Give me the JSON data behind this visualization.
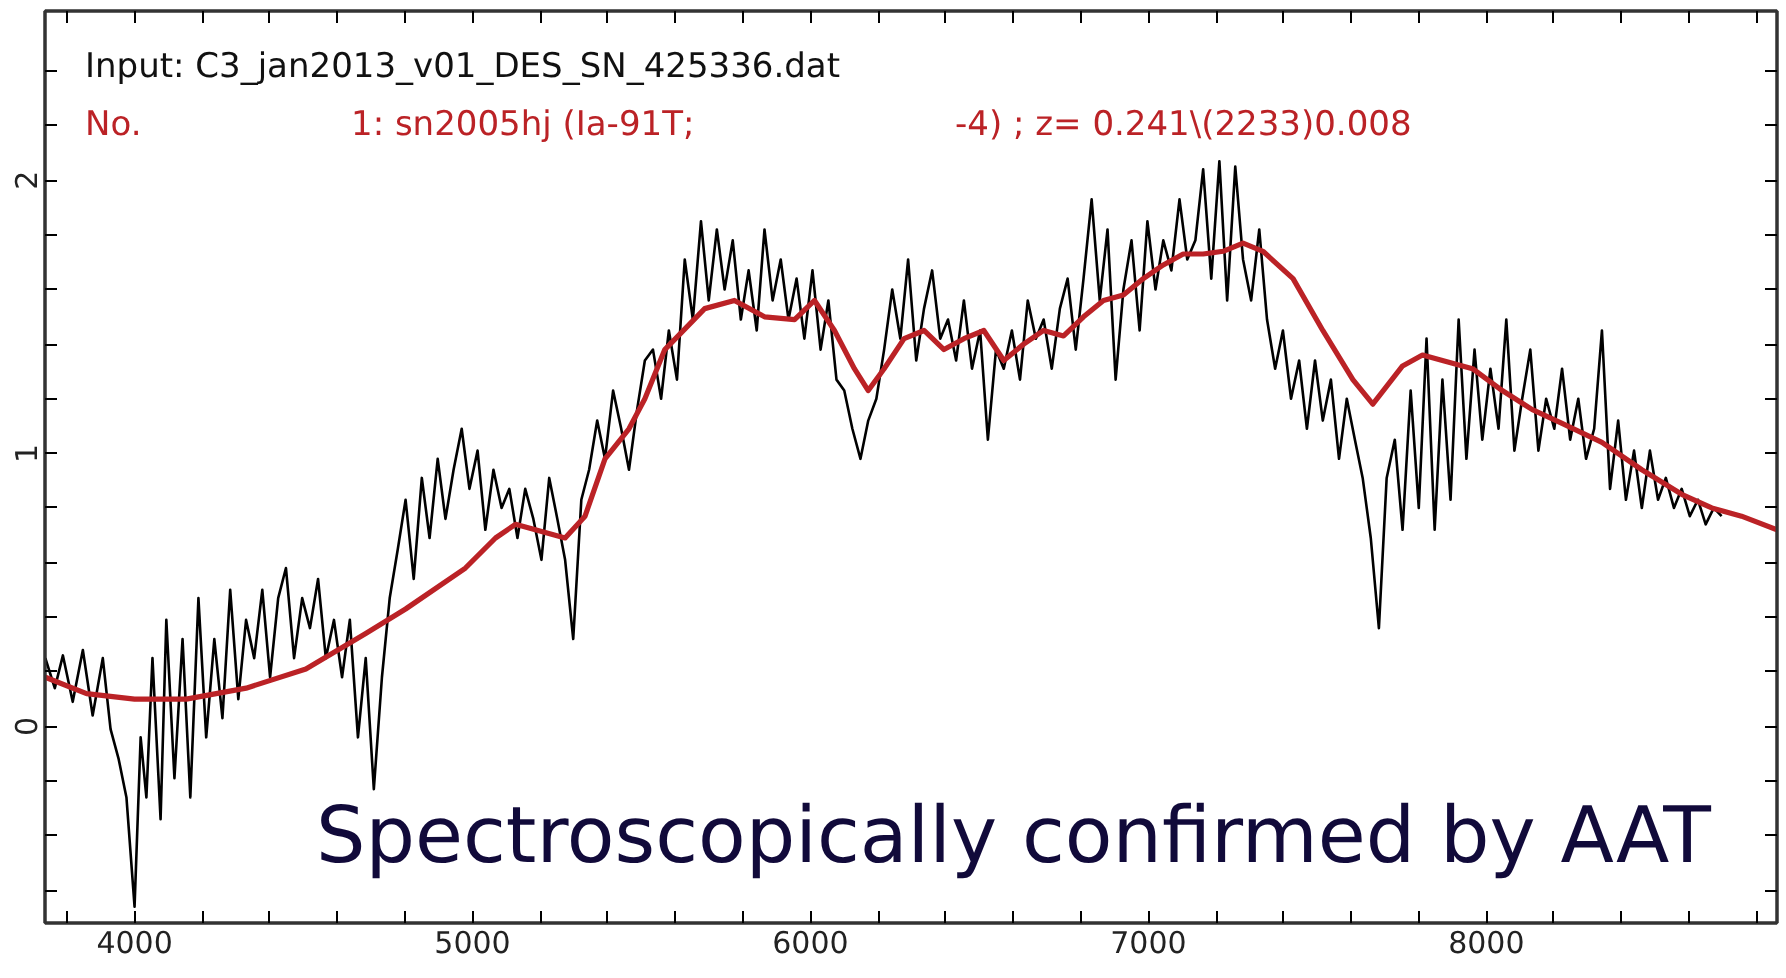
{
  "chart_data": {
    "type": "line",
    "annotations": [
      "Input: C3_jan2013_v01_DES_SN_425336.dat",
      "No.",
      "1: sn2005hj (Ia-91T;",
      "-4) ; z= 0.241\\(2233)0.008",
      "Spectroscopically confirmed by AAT"
    ],
    "series": [
      {
        "color": "#000000",
        "x": [
          3736,
          3764,
          3788,
          3817,
          3847,
          3876,
          3906,
          3929,
          3953,
          3976,
          4000,
          4018,
          4035,
          4053,
          4077,
          4094,
          4118,
          4142,
          4165,
          4189,
          4212,
          4236,
          4260,
          4283,
          4307,
          4330,
          4354,
          4378,
          4401,
          4425,
          4448,
          4472,
          4496,
          4519,
          4543,
          4566,
          4590,
          4614,
          4637,
          4661,
          4684,
          4708,
          4732,
          4755,
          4779,
          4802,
          4826,
          4850,
          4873,
          4897,
          4920,
          4944,
          4968,
          4991,
          5015,
          5038,
          5062,
          5086,
          5109,
          5133,
          5156,
          5180,
          5204,
          5227,
          5251,
          5274,
          5298,
          5322,
          5345,
          5369,
          5392,
          5416,
          5440,
          5463,
          5487,
          5510,
          5534,
          5558,
          5581,
          5605,
          5628,
          5652,
          5676,
          5699,
          5723,
          5746,
          5770,
          5794,
          5817,
          5841,
          5864,
          5888,
          5912,
          5935,
          5959,
          5982,
          6006,
          6030,
          6053,
          6077,
          6100,
          6124,
          6148,
          6171,
          6195,
          6218,
          6242,
          6266,
          6289,
          6313,
          6336,
          6360,
          6384,
          6407,
          6431,
          6454,
          6478,
          6502,
          6525,
          6549,
          6572,
          6596,
          6620,
          6643,
          6667,
          6690,
          6714,
          6738,
          6761,
          6785,
          6808,
          6832,
          6856,
          6879,
          6903,
          6926,
          6950,
          6974,
          6997,
          7021,
          7044,
          7068,
          7092,
          7115,
          7139,
          7162,
          7186,
          7210,
          7233,
          7257,
          7280,
          7304,
          7328,
          7351,
          7375,
          7398,
          7422,
          7446,
          7469,
          7493,
          7516,
          7540,
          7564,
          7587,
          7611,
          7634,
          7658,
          7682,
          7705,
          7729,
          7752,
          7776,
          7800,
          7823,
          7847,
          7870,
          7894,
          7918,
          7941,
          7965,
          7988,
          8012,
          8036,
          8059,
          8083,
          8106,
          8130,
          8154,
          8177,
          8201,
          8224,
          8248,
          8272,
          8295,
          8319,
          8342,
          8366,
          8390,
          8413,
          8437,
          8460,
          8484,
          8508,
          8531,
          8555,
          8578,
          8602,
          8626,
          8649,
          8673,
          8696
        ],
        "values": [
          0.25,
          0.14,
          0.26,
          0.09,
          0.28,
          0.04,
          0.25,
          -0.01,
          -0.12,
          -0.26,
          -0.66,
          -0.04,
          -0.26,
          0.25,
          -0.34,
          0.39,
          -0.19,
          0.32,
          -0.26,
          0.47,
          -0.04,
          0.32,
          0.03,
          0.5,
          0.1,
          0.39,
          0.25,
          0.5,
          0.18,
          0.47,
          0.58,
          0.25,
          0.47,
          0.36,
          0.54,
          0.25,
          0.39,
          0.18,
          0.39,
          -0.04,
          0.25,
          -0.23,
          0.18,
          0.47,
          0.65,
          0.83,
          0.54,
          0.91,
          0.69,
          0.98,
          0.76,
          0.94,
          1.09,
          0.87,
          1.01,
          0.72,
          0.94,
          0.8,
          0.87,
          0.69,
          0.87,
          0.76,
          0.61,
          0.91,
          0.76,
          0.61,
          0.32,
          0.83,
          0.94,
          1.12,
          0.98,
          1.23,
          1.09,
          0.94,
          1.16,
          1.34,
          1.38,
          1.2,
          1.45,
          1.27,
          1.71,
          1.49,
          1.85,
          1.56,
          1.82,
          1.6,
          1.78,
          1.49,
          1.67,
          1.45,
          1.82,
          1.56,
          1.71,
          1.49,
          1.64,
          1.42,
          1.67,
          1.38,
          1.56,
          1.27,
          1.23,
          1.09,
          0.98,
          1.12,
          1.2,
          1.38,
          1.6,
          1.42,
          1.71,
          1.34,
          1.53,
          1.67,
          1.42,
          1.49,
          1.34,
          1.56,
          1.31,
          1.45,
          1.05,
          1.38,
          1.31,
          1.45,
          1.27,
          1.56,
          1.42,
          1.49,
          1.31,
          1.53,
          1.64,
          1.38,
          1.64,
          1.93,
          1.56,
          1.82,
          1.27,
          1.6,
          1.78,
          1.45,
          1.85,
          1.6,
          1.78,
          1.67,
          1.93,
          1.71,
          1.78,
          2.04,
          1.64,
          2.07,
          1.56,
          2.05,
          1.71,
          1.56,
          1.82,
          1.49,
          1.31,
          1.45,
          1.2,
          1.34,
          1.09,
          1.34,
          1.12,
          1.27,
          0.98,
          1.2,
          1.05,
          0.91,
          0.69,
          0.36,
          0.91,
          1.05,
          0.72,
          1.23,
          0.8,
          1.42,
          0.72,
          1.27,
          0.83,
          1.49,
          0.98,
          1.38,
          1.05,
          1.31,
          1.09,
          1.49,
          1.01,
          1.2,
          1.38,
          1.01,
          1.2,
          1.09,
          1.31,
          1.05,
          1.2,
          0.98,
          1.09,
          1.45,
          0.87,
          1.12,
          0.83,
          1.01,
          0.8,
          1.01,
          0.83,
          0.91,
          0.8,
          0.87,
          0.77,
          0.83,
          0.74,
          0.8,
          0.77
        ]
      },
      {
        "color": "#bb2226",
        "x": [
          3736,
          3858,
          4000,
          4153,
          4330,
          4507,
          4684,
          4802,
          4979,
          5068,
          5127,
          5186,
          5274,
          5333,
          5392,
          5463,
          5510,
          5569,
          5687,
          5775,
          5864,
          5953,
          6012,
          6071,
          6130,
          6171,
          6218,
          6277,
          6336,
          6395,
          6454,
          6513,
          6572,
          6631,
          6690,
          6749,
          6808,
          6867,
          6926,
          6985,
          7044,
          7103,
          7162,
          7221,
          7280,
          7339,
          7428,
          7516,
          7605,
          7664,
          7752,
          7811,
          7870,
          7959,
          8047,
          8136,
          8224,
          8342,
          8460,
          8578,
          8667,
          8755,
          8860
        ],
        "values": [
          0.18,
          0.12,
          0.1,
          0.1,
          0.14,
          0.21,
          0.34,
          0.43,
          0.58,
          0.69,
          0.74,
          0.72,
          0.69,
          0.77,
          0.98,
          1.09,
          1.2,
          1.38,
          1.53,
          1.56,
          1.5,
          1.49,
          1.56,
          1.45,
          1.31,
          1.23,
          1.31,
          1.42,
          1.45,
          1.38,
          1.42,
          1.45,
          1.34,
          1.4,
          1.45,
          1.43,
          1.5,
          1.56,
          1.58,
          1.64,
          1.69,
          1.73,
          1.73,
          1.74,
          1.77,
          1.74,
          1.64,
          1.45,
          1.27,
          1.18,
          1.32,
          1.36,
          1.34,
          1.31,
          1.23,
          1.16,
          1.11,
          1.04,
          0.94,
          0.85,
          0.8,
          0.77,
          0.72
        ]
      }
    ],
    "xlim": [
      3735,
      8860
    ],
    "ylim": [
      -0.72,
      2.62
    ],
    "xticks": [
      {
        "value": 3800,
        "label": null
      },
      4000,
      {
        "value": 4200,
        "label": null
      },
      {
        "value": 4400,
        "label": null
      },
      {
        "value": 4600,
        "label": null
      },
      {
        "value": 4800,
        "label": null
      },
      5000,
      {
        "value": 5200,
        "label": null
      },
      {
        "value": 5400,
        "label": null
      },
      {
        "value": 5600,
        "label": null
      },
      {
        "value": 5800,
        "label": null
      },
      6000,
      {
        "value": 6200,
        "label": null
      },
      {
        "value": 6400,
        "label": null
      },
      {
        "value": 6600,
        "label": null
      },
      {
        "value": 6800,
        "label": null
      },
      7000,
      {
        "value": 7200,
        "label": null
      },
      {
        "value": 7400,
        "label": null
      },
      {
        "value": 7600,
        "label": null
      },
      {
        "value": 7800,
        "label": null
      },
      8000,
      {
        "value": 8200,
        "label": null
      },
      {
        "value": 8400,
        "label": null
      },
      {
        "value": 8600,
        "label": null
      },
      {
        "value": 8800,
        "label": null
      }
    ],
    "yticks": [
      {
        "value": -0.6,
        "label": null
      },
      {
        "value": -0.4,
        "label": null
      },
      {
        "value": -0.2,
        "label": null
      },
      0,
      {
        "value": 0.2,
        "label": null
      },
      {
        "value": 0.4,
        "label": null
      },
      {
        "value": 0.6,
        "label": null
      },
      {
        "value": 0.8,
        "label": null
      },
      1,
      {
        "value": 1.2,
        "label": null
      },
      {
        "value": 1.4,
        "label": null
      },
      {
        "value": 1.6,
        "label": null
      },
      {
        "value": 1.8,
        "label": null
      },
      2,
      {
        "value": 2.2,
        "label": null
      },
      {
        "value": 2.4,
        "label": null
      }
    ],
    "grid": false,
    "marker": "none",
    "line_style": "solid"
  }
}
